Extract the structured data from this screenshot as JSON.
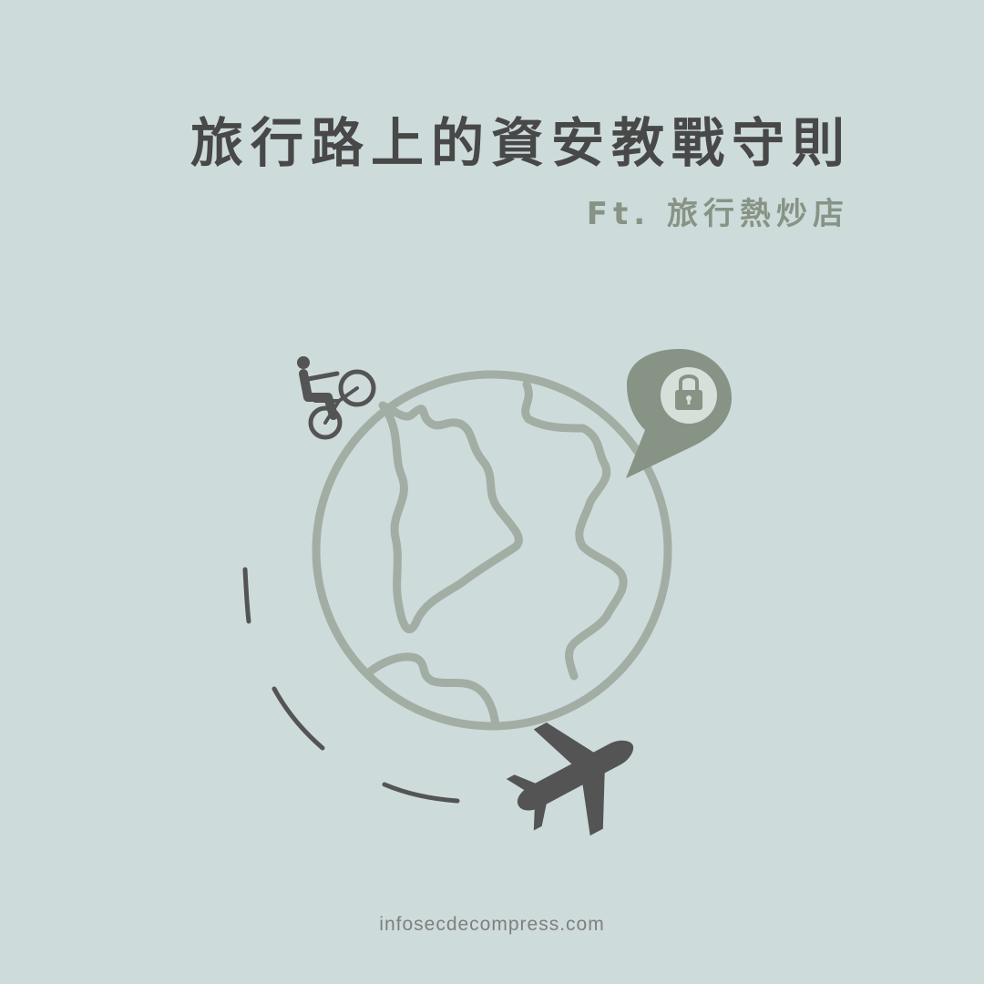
{
  "header": {
    "title": "旅行路上的資安教戰守則",
    "subtitle": "Ft. 旅行熱炒店"
  },
  "footer": {
    "website": "infosecdecompress.com"
  },
  "icons": {
    "globe": "globe-icon",
    "cyclist": "cyclist-icon",
    "location_pin": "location-pin-icon",
    "lock": "lock-icon",
    "airplane": "airplane-icon"
  },
  "colors": {
    "background": "#cedbdb",
    "title": "#484848",
    "accent": "#879385",
    "globe": "#a2ada4",
    "dark_icon": "#545454"
  }
}
